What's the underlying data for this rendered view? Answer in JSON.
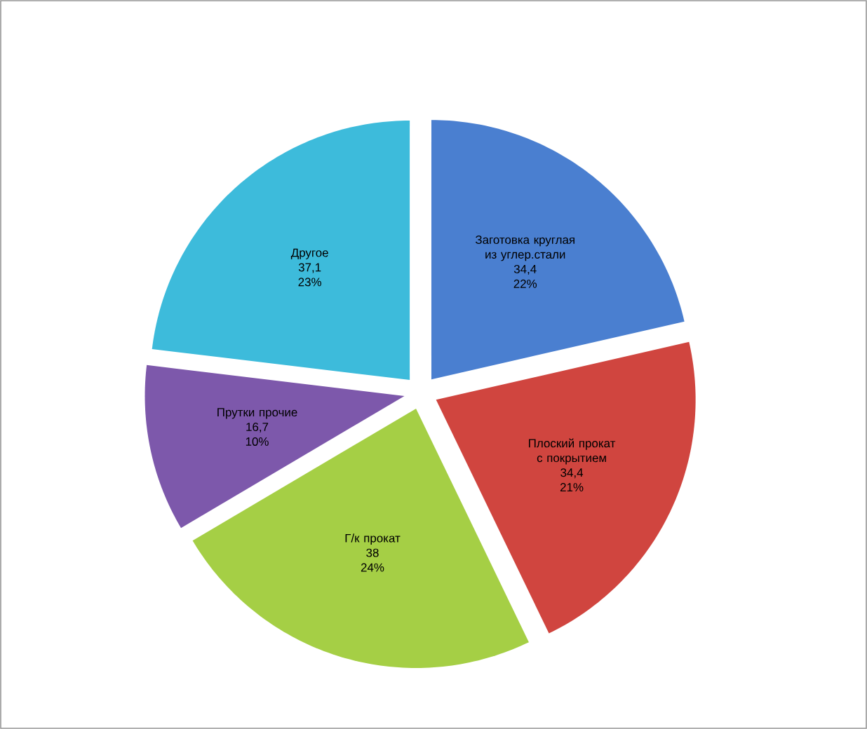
{
  "chart_data": {
    "type": "pie",
    "categories": [
      "Заготовка круглая из углер.стали",
      "Плоский прокат с покрытием",
      "Г/к прокат",
      "Прутки прочие",
      "Другое"
    ],
    "values": [
      34.4,
      34.4,
      38,
      16.7,
      37.1
    ],
    "value_labels": [
      "34,4",
      "34,4",
      "38",
      "16,7",
      "37,1"
    ],
    "annotations": [
      "22%",
      "21%",
      "24%",
      "10%",
      "23%"
    ],
    "colors": [
      "#4a7fd0",
      "#d0453f",
      "#a5cf45",
      "#7d58ab",
      "#3dbbdb"
    ],
    "legend": false
  }
}
